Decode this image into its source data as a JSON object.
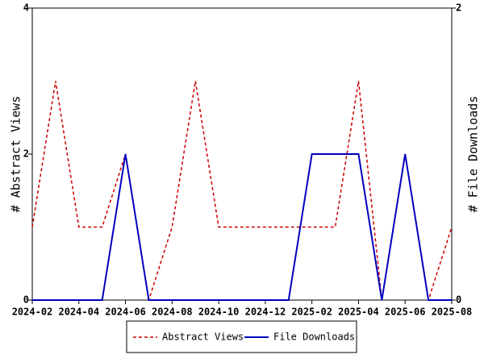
{
  "chart_data": {
    "type": "line",
    "x": [
      "2024-02",
      "2024-03",
      "2024-04",
      "2024-05",
      "2024-06",
      "2024-07",
      "2024-08",
      "2024-09",
      "2024-10",
      "2024-11",
      "2024-12",
      "2025-01",
      "2025-02",
      "2025-03",
      "2025-04",
      "2025-05",
      "2025-06",
      "2025-07",
      "2025-08"
    ],
    "xlim": [
      "2024-02",
      "2025-08"
    ],
    "xticks": [
      "2024-02",
      "2024-04",
      "2024-06",
      "2024-08",
      "2024-10",
      "2024-12",
      "2025-02",
      "2025-04",
      "2025-06",
      "2025-08"
    ],
    "ylabel": "# Abstract Views",
    "y2label": "# File Downloads",
    "ylim": [
      0,
      4
    ],
    "yticks": [
      0,
      2,
      4
    ],
    "y2lim": [
      0,
      2
    ],
    "y2ticks": [
      0,
      2
    ],
    "legend": "bottom",
    "series": [
      {
        "name": "Abstract Views",
        "color": "#cc0000",
        "dash": true,
        "axis": "y",
        "values": [
          1,
          3,
          1,
          1,
          2,
          0,
          1,
          3,
          1,
          1,
          1,
          1,
          1,
          1,
          3,
          0,
          2,
          0,
          1
        ]
      },
      {
        "name": "File Downloads",
        "color": "#0000bb",
        "dash": false,
        "axis": "y2",
        "values": [
          0,
          0,
          0,
          0,
          1,
          0,
          0,
          0,
          0,
          0,
          0,
          0,
          1,
          1,
          1,
          0,
          1,
          0,
          0
        ]
      }
    ]
  }
}
